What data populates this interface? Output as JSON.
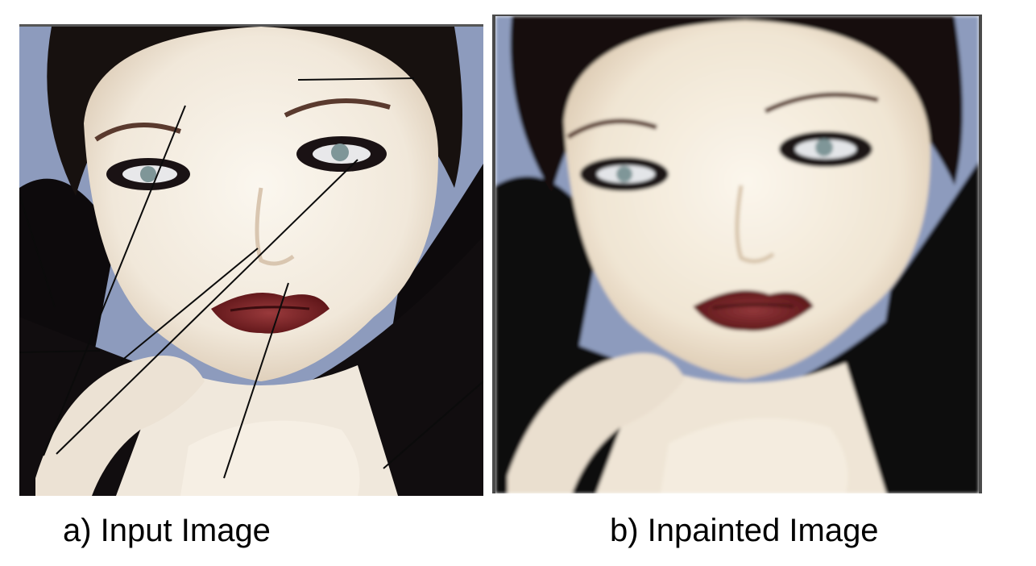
{
  "figure": {
    "panel_a": {
      "caption": "a)  Input Image",
      "image_label": "portrait-with-scratch-lines",
      "line_color": "#0b0b0b"
    },
    "panel_b": {
      "caption": "b) Inpainted Image",
      "image_label": "restored-portrait"
    },
    "colors": {
      "background_blue": "#8d9bbd",
      "fur_black": "#0d0a0c",
      "skin": "#f4eee4",
      "lips": "#7a1e22",
      "eye_makeup": "#1a1214",
      "iris": "#7f9698",
      "brow": "#5a3a2e"
    }
  }
}
